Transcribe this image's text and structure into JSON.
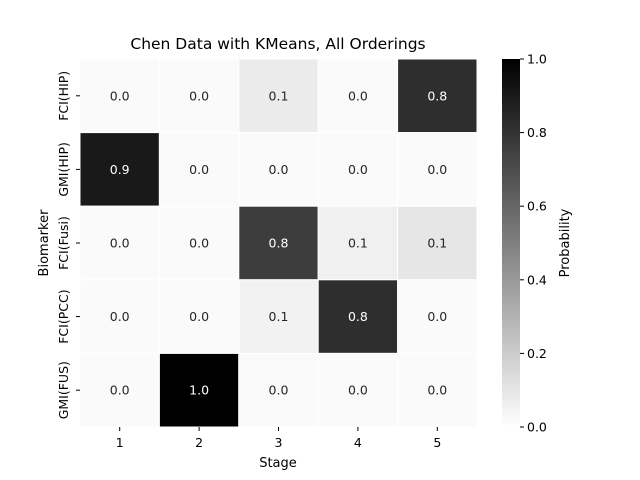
{
  "chart_data": {
    "type": "heatmap",
    "title": "Chen Data with KMeans, All Orderings",
    "xlabel": "Stage",
    "ylabel": "Biomarker",
    "x_categories": [
      "1",
      "2",
      "3",
      "4",
      "5"
    ],
    "y_categories": [
      "FCI(HIP)",
      "GMI(HIP)",
      "FCI(Fusi)",
      "FCI(PCC)",
      "GMI(FUS)"
    ],
    "values": [
      [
        0.02,
        0.02,
        0.08,
        0.02,
        0.82
      ],
      [
        0.9,
        0.02,
        0.02,
        0.02,
        0.02
      ],
      [
        0.02,
        0.02,
        0.76,
        0.06,
        0.1
      ],
      [
        0.02,
        0.02,
        0.05,
        0.82,
        0.02
      ],
      [
        0.02,
        1.0,
        0.02,
        0.02,
        0.02
      ]
    ],
    "cell_labels": [
      [
        "0.0",
        "0.0",
        "0.1",
        "0.0",
        "0.8"
      ],
      [
        "0.9",
        "0.0",
        "0.0",
        "0.0",
        "0.0"
      ],
      [
        "0.0",
        "0.0",
        "0.8",
        "0.1",
        "0.1"
      ],
      [
        "0.0",
        "0.0",
        "0.1",
        "0.8",
        "0.0"
      ],
      [
        "0.0",
        "1.0",
        "0.0",
        "0.0",
        "0.0"
      ]
    ],
    "colorbar": {
      "label": "Probability",
      "range": [
        0,
        1
      ],
      "ticks": [
        "0.0",
        "0.2",
        "0.4",
        "0.6",
        "0.8",
        "1.0"
      ],
      "colormap": "Greys"
    },
    "grid": false,
    "legend": "colorbar-right"
  }
}
